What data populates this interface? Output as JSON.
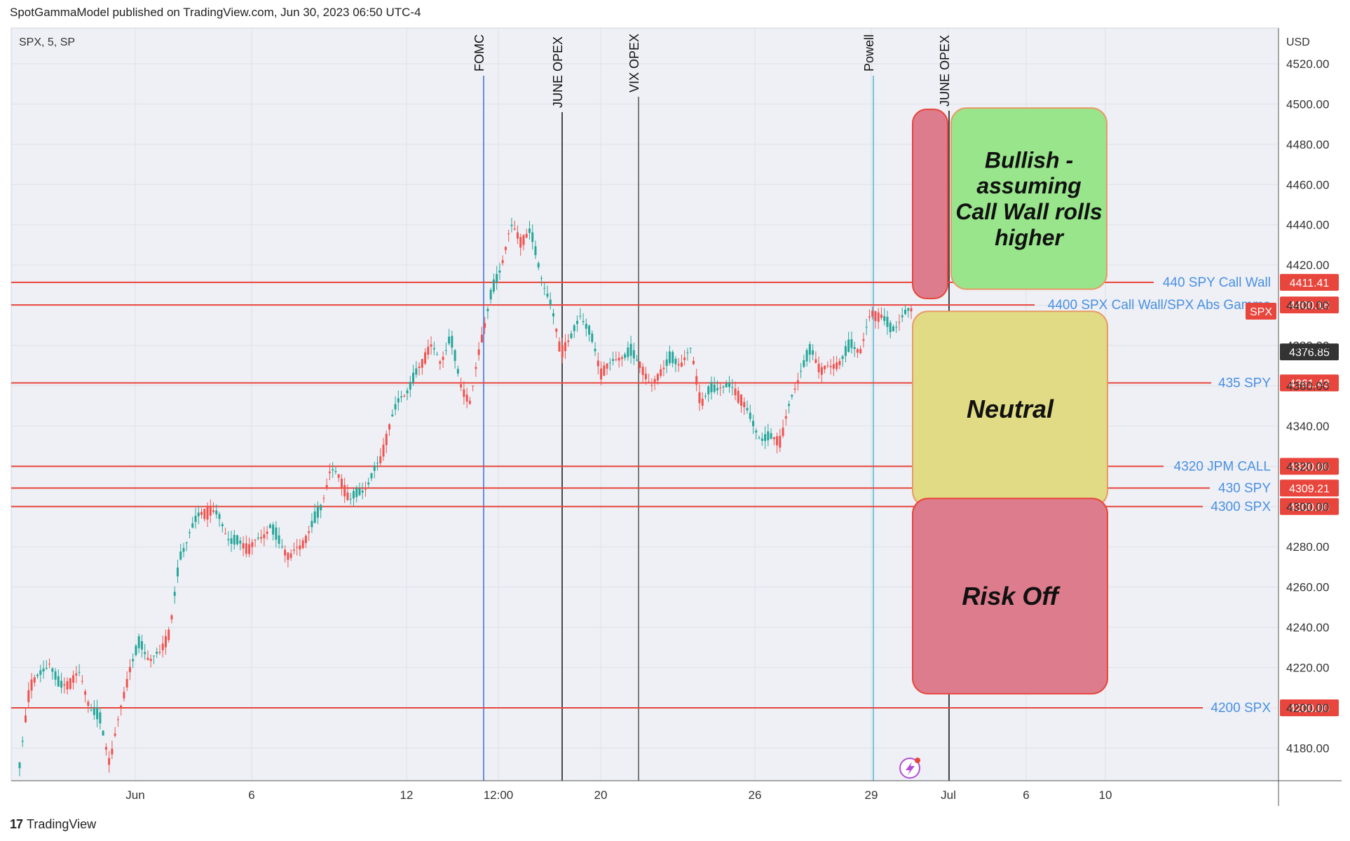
{
  "header": {
    "published": "SpotGammaModel published on TradingView.com, Jun 30, 2023 06:50 UTC-4"
  },
  "footer": {
    "brand": "TradingView",
    "logo_icon": "tradingview-logo-icon"
  },
  "colors": {
    "level_line": "#e8453c",
    "level_text": "#4a90e2",
    "up_candle": "#26a69a",
    "down_candle": "#ef5350",
    "green_zone": "#98e58b",
    "yellow_zone": "#e1db85",
    "red_zone": "#dc7c8c"
  },
  "chart_data": {
    "type": "candlestick",
    "symbol_label": "SPX, 5, SP",
    "currency": "USD",
    "last_price": "4376.85",
    "last_price_tag": "SPX",
    "ylim": [
      4162,
      4532
    ],
    "y_ticks": [
      "4180.00",
      "4200.00",
      "4220.00",
      "4240.00",
      "4260.00",
      "4280.00",
      "4300.00",
      "4320.00",
      "4340.00",
      "4360.00",
      "4380.00",
      "4400.00",
      "4420.00",
      "4440.00",
      "4460.00",
      "4480.00",
      "4500.00",
      "4520.00"
    ],
    "x_ticks": [
      "Jun",
      "6",
      "12",
      "12:00",
      "20",
      "26",
      "29",
      "Jul",
      "6",
      "10"
    ],
    "event_lines": [
      {
        "label": "FOMC",
        "color": "#3d6bd6"
      },
      {
        "label": "JUNE OPEX",
        "color": "#111111"
      },
      {
        "label": "VIX OPEX",
        "color": "#555555"
      },
      {
        "label": "Powell",
        "color": "#4ab5d6"
      },
      {
        "label": "JUNE OPEX",
        "color": "#111111"
      }
    ],
    "levels": [
      {
        "label": "440 SPY Call Wall",
        "value": 4411.41,
        "price": "4411.41"
      },
      {
        "label": "4400 SPX Call Wall/SPX Abs Gamma",
        "value": 4400.18,
        "price": "4400.18"
      },
      {
        "label": "435 SPY",
        "value": 4361.43,
        "price": "4361.43"
      },
      {
        "label": "4320 JPM CALL",
        "value": 4320.0,
        "price": "4320.00"
      },
      {
        "label": "430 SPY",
        "value": 4309.21,
        "price": "4309.21"
      },
      {
        "label": "4300 SPX",
        "value": 4300.0,
        "price": "4300.00"
      },
      {
        "label": "4200 SPX",
        "value": 4200.0,
        "price": "4200.00"
      }
    ],
    "zones": [
      {
        "label": "Bullish -\nassuming\nCall Wall rolls\nhigher",
        "ylow": 4408,
        "yhigh": 4498
      },
      {
        "label": "Neutral",
        "ylow": 4300,
        "yhigh": 4397
      },
      {
        "label": "Risk Off",
        "ylow": 4207,
        "yhigh": 4304
      }
    ],
    "price_path": [
      4170,
      4210,
      4215,
      4225,
      4211,
      4212,
      4215,
      4202,
      4196,
      4173,
      4195,
      4220,
      4234,
      4225,
      4225,
      4238,
      4275,
      4290,
      4295,
      4297,
      4294,
      4285,
      4282,
      4278,
      4283,
      4292,
      4283,
      4274,
      4278,
      4290,
      4300,
      4318,
      4312,
      4303,
      4309,
      4314,
      4322,
      4340,
      4356,
      4361,
      4370,
      4378,
      4372,
      4386,
      4362,
      4349,
      4381,
      4405,
      4420,
      4438,
      4431,
      4437,
      4418,
      4400,
      4376,
      4382,
      4398,
      4386,
      4366,
      4369,
      4376,
      4378,
      4371,
      4356,
      4368,
      4375,
      4372,
      4376,
      4351,
      4359,
      4362,
      4358,
      4353,
      4343,
      4336,
      4334,
      4332,
      4352,
      4370,
      4379,
      4367,
      4367,
      4374,
      4382,
      4378,
      4394,
      4395,
      4389,
      4395,
      4396
    ]
  }
}
